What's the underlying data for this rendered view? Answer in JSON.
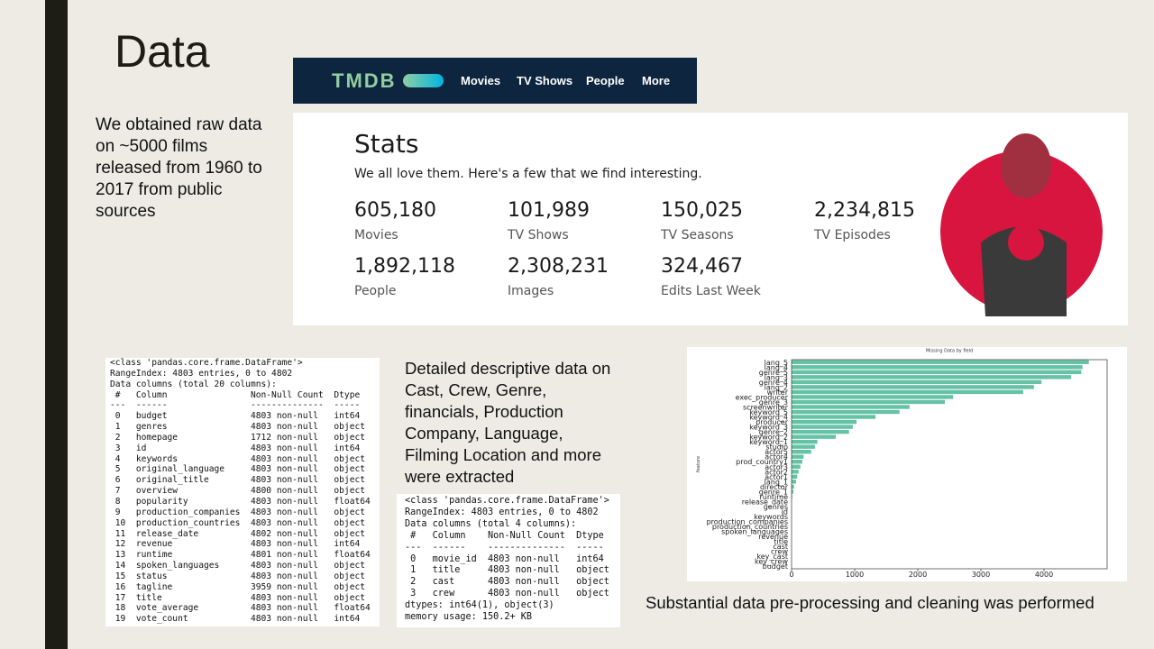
{
  "title": "Data",
  "intro": "We obtained raw data on ~5000 films released from 1960 to 2017 from public sources",
  "tmdb": {
    "logo": "TMDB",
    "nav": [
      "Movies",
      "TV Shows",
      "People",
      "More"
    ],
    "stats_title": "Stats",
    "stats_subtitle": "We all love them. Here's a few that we find interesting.",
    "stats": [
      {
        "value": "605,180",
        "label": "Movies"
      },
      {
        "value": "101,989",
        "label": "TV Shows"
      },
      {
        "value": "150,025",
        "label": "TV Seasons"
      },
      {
        "value": "2,234,815",
        "label": "TV Episodes"
      },
      {
        "value": "1,892,118",
        "label": "People"
      },
      {
        "value": "2,308,231",
        "label": "Images"
      },
      {
        "value": "324,467",
        "label": "Edits Last Week"
      }
    ]
  },
  "dataframe_info": {
    "lines": [
      "<class 'pandas.core.frame.DataFrame'>",
      "RangeIndex: 4803 entries, 0 to 4802",
      "Data columns (total 20 columns):",
      " #   Column                Non-Null Count  Dtype",
      "---  ------                --------------  -----",
      " 0   budget                4803 non-null   int64",
      " 1   genres                4803 non-null   object",
      " 2   homepage              1712 non-null   object",
      " 3   id                    4803 non-null   int64",
      " 4   keywords              4803 non-null   object",
      " 5   original_language     4803 non-null   object",
      " 6   original_title        4803 non-null   object",
      " 7   overview              4800 non-null   object",
      " 8   popularity            4803 non-null   float64",
      " 9   production_companies  4803 non-null   object",
      " 10  production_countries  4803 non-null   object",
      " 11  release_date          4802 non-null   object",
      " 12  revenue               4803 non-null   int64",
      " 13  runtime               4801 non-null   float64",
      " 14  spoken_languages      4803 non-null   object",
      " 15  status                4803 non-null   object",
      " 16  tagline               3959 non-null   object",
      " 17  title                 4803 non-null   object",
      " 18  vote_average          4803 non-null   float64",
      " 19  vote_count            4803 non-null   int64"
    ]
  },
  "description": "Detailed descriptive data on Cast, Crew, Genre, financials, Production Company, Language, Filming Location and more were extracted",
  "dataframe_info_small": {
    "lines": [
      "<class 'pandas.core.frame.DataFrame'>",
      "RangeIndex: 4803 entries, 0 to 4802",
      "Data columns (total 4 columns):",
      " #   Column    Non-Null Count  Dtype",
      "---  ------    --------------  -----",
      " 0   movie_id  4803 non-null   int64",
      " 1   title     4803 non-null   object",
      " 2   cast      4803 non-null   object",
      " 3   crew      4803 non-null   object",
      "dtypes: int64(1), object(3)",
      "memory usage: 150.2+ KB"
    ]
  },
  "chart_data": {
    "type": "barh",
    "title": "Missing Data by field",
    "ylabel": "feature",
    "color": "#66c2a5",
    "categories": [
      "lang_5",
      "lang_4",
      "genre_5",
      "lang_3",
      "genre_4",
      "lang_2",
      "writer",
      "exec_producer",
      "genre_3",
      "screenwriter",
      "keyword_5",
      "keyword_4",
      "producer",
      "keyword_3",
      "genre_2",
      "keyword_2",
      "keyword_1",
      "studio",
      "actor5",
      "actor4",
      "prod_country1",
      "actor3",
      "actor2",
      "actor1",
      "lang_1",
      "director",
      "genre_1",
      "runtime",
      "release_date",
      "genres",
      "id",
      "keywords",
      "production_companies",
      "production_countries",
      "spoken_languages",
      "revenue",
      "title",
      "cast",
      "crew",
      "key_cast",
      "key_crew",
      "budget"
    ],
    "values": [
      4710,
      4610,
      4590,
      4430,
      3960,
      3840,
      3670,
      2560,
      2430,
      1870,
      1710,
      1330,
      1030,
      970,
      910,
      700,
      410,
      370,
      310,
      190,
      170,
      140,
      110,
      90,
      70,
      40,
      30,
      10,
      0,
      0,
      0,
      0,
      0,
      0,
      0,
      0,
      0,
      0,
      0,
      0,
      0,
      0
    ],
    "xlim": [
      0,
      5000
    ],
    "xticks": [
      0,
      1000,
      2000,
      3000,
      4000
    ]
  },
  "caption": "Substantial data pre-processing and cleaning was performed"
}
